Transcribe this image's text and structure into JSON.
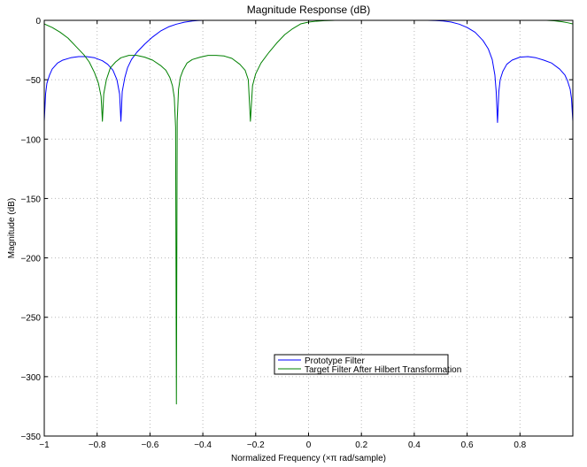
{
  "chart_data": {
    "type": "line",
    "title": "Magnitude Response (dB)",
    "xlabel": "Normalized Frequency (×π rad/sample)",
    "ylabel": "Magnitude (dB)",
    "xlim": [
      -1,
      1
    ],
    "ylim": [
      -350,
      0
    ],
    "xticks": [
      -1,
      -0.8,
      -0.6,
      -0.4,
      -0.2,
      0,
      0.2,
      0.4,
      0.6,
      0.8
    ],
    "xtick_labels": [
      "−1",
      "−0.8",
      "−0.6",
      "−0.4",
      "−0.2",
      "0",
      "0.2",
      "0.4",
      "0.6",
      "0.8"
    ],
    "yticks": [
      0,
      -50,
      -100,
      -150,
      -200,
      -250,
      -300,
      -350
    ],
    "ytick_labels": [
      "0",
      "−50",
      "−100",
      "−150",
      "−200",
      "−250",
      "−300",
      "−350"
    ],
    "grid": true,
    "legend_position": "lower-center",
    "series": [
      {
        "name": "Prototype Filter",
        "color": "#0000ff",
        "x": [
          -1.0,
          -0.995,
          -0.99,
          -0.98,
          -0.97,
          -0.95,
          -0.93,
          -0.9,
          -0.87,
          -0.84,
          -0.81,
          -0.78,
          -0.76,
          -0.74,
          -0.725,
          -0.715,
          -0.71,
          -0.705,
          -0.695,
          -0.685,
          -0.67,
          -0.65,
          -0.62,
          -0.59,
          -0.56,
          -0.53,
          -0.5,
          -0.47,
          -0.44,
          -0.42,
          -0.4,
          0.45,
          0.48,
          0.51,
          0.54,
          0.57,
          0.6,
          0.63,
          0.66,
          0.68,
          0.695,
          0.705,
          0.71,
          0.715,
          0.72,
          0.725,
          0.735,
          0.75,
          0.77,
          0.8,
          0.83,
          0.86,
          0.89,
          0.92,
          0.95,
          0.97,
          0.98,
          0.99,
          0.995,
          1.0
        ],
        "y": [
          -85,
          -62,
          -53,
          -46,
          -41,
          -36,
          -33.5,
          -31.5,
          -30.5,
          -30.5,
          -31.5,
          -34,
          -37,
          -42,
          -50,
          -62,
          -85,
          -60,
          -48,
          -40,
          -33,
          -27,
          -20,
          -14,
          -9,
          -5.5,
          -3.2,
          -1.6,
          -0.6,
          -0.2,
          0,
          0,
          -0.2,
          -0.6,
          -1.5,
          -3.2,
          -6,
          -10,
          -17,
          -24,
          -33,
          -46,
          -60,
          -86,
          -60,
          -50,
          -43,
          -37,
          -33.5,
          -31,
          -30.5,
          -31.5,
          -33.5,
          -36,
          -41,
          -46,
          -51,
          -58,
          -66,
          -85
        ]
      },
      {
        "name": "Target Filter After Hilbert Transformation",
        "color": "#008000",
        "x": [
          -1.0,
          -0.97,
          -0.94,
          -0.91,
          -0.88,
          -0.85,
          -0.83,
          -0.81,
          -0.795,
          -0.785,
          -0.78,
          -0.775,
          -0.765,
          -0.75,
          -0.73,
          -0.71,
          -0.68,
          -0.65,
          -0.62,
          -0.59,
          -0.56,
          -0.54,
          -0.525,
          -0.515,
          -0.508,
          -0.503,
          -0.5,
          -0.497,
          -0.492,
          -0.485,
          -0.475,
          -0.46,
          -0.44,
          -0.41,
          -0.38,
          -0.35,
          -0.32,
          -0.29,
          -0.26,
          -0.24,
          -0.228,
          -0.22,
          -0.212,
          -0.2,
          -0.18,
          -0.15,
          -0.12,
          -0.09,
          -0.06,
          -0.03,
          0.0,
          0.03,
          0.06,
          0.09,
          0.1,
          0.9,
          0.93,
          0.96,
          0.98,
          1.0
        ],
        "y": [
          -3,
          -6,
          -10,
          -15,
          -22,
          -29,
          -35,
          -44,
          -53,
          -64,
          -85,
          -62,
          -50,
          -40,
          -35,
          -31.5,
          -29.5,
          -29.5,
          -31,
          -33.5,
          -38,
          -42,
          -48,
          -55,
          -65,
          -90,
          -323,
          -85,
          -58,
          -48,
          -42,
          -36,
          -33,
          -31,
          -29.5,
          -29.5,
          -30,
          -32,
          -37,
          -42,
          -50,
          -85,
          -55,
          -45,
          -36,
          -27,
          -19,
          -12,
          -7,
          -3,
          -1.5,
          -0.7,
          -0.3,
          -0.1,
          0,
          0,
          -0.4,
          -1.2,
          -2,
          -3
        ]
      }
    ]
  }
}
